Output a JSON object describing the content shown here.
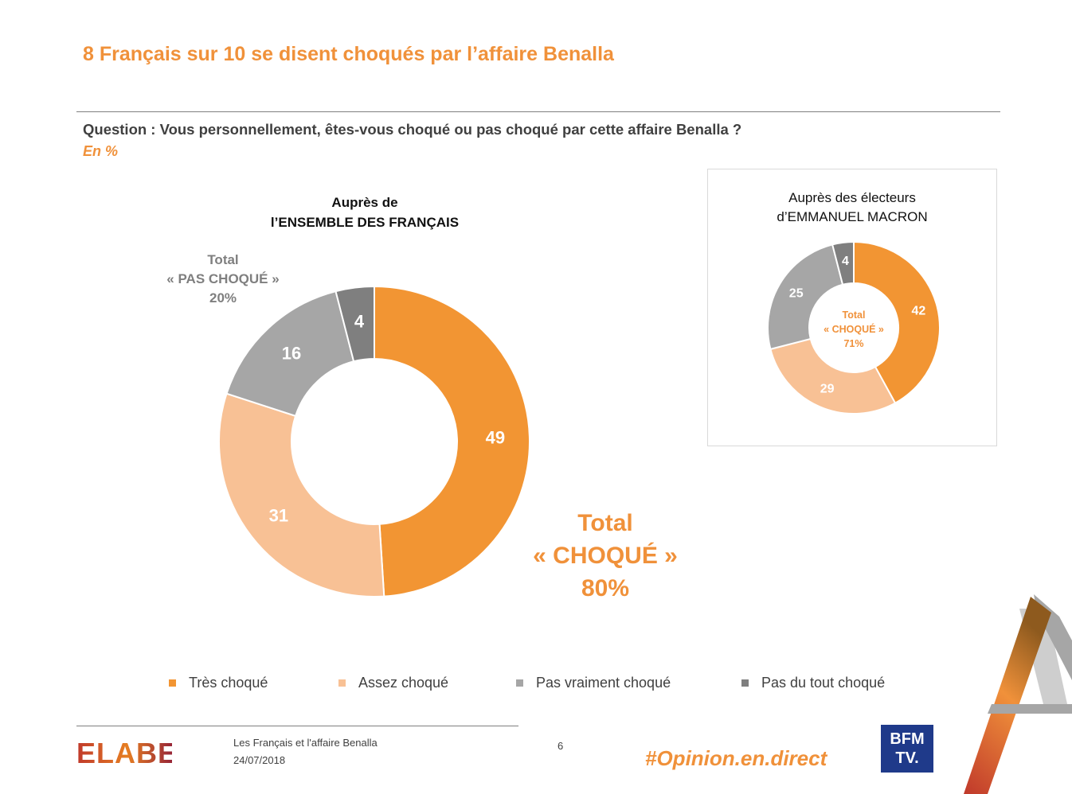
{
  "title": "8 Français sur 10 se disent choqués par l’affaire Benalla",
  "question": "Question : Vous personnellement, êtes-vous choqué ou pas choqué par cette affaire Benalla ?",
  "unit": "En %",
  "colors": {
    "accent": "#F0913A",
    "tres": "#F29533",
    "assez": "#F8C195",
    "pas_vraiment": "#A6A6A6",
    "pas_du_tout": "#7F7F7F"
  },
  "chart_data": [
    {
      "type": "pie",
      "title_line1": "Auprès de",
      "title_line2": "l’ENSEMBLE DES FRANÇAIS",
      "categories": [
        "Très choqué",
        "Assez choqué",
        "Pas vraiment choqué",
        "Pas du tout choqué"
      ],
      "values": [
        49,
        31,
        16,
        4
      ],
      "value_labels": [
        "49",
        "31",
        "16",
        "4"
      ],
      "annotation_pas_choque": {
        "line1": "Total",
        "line2": "« PAS CHOQUÉ »",
        "line3": "20%"
      },
      "annotation_choque": {
        "line1": "Total",
        "line2": "« CHOQUÉ »",
        "line3": "80%"
      }
    },
    {
      "type": "pie",
      "title_line1": "Auprès des électeurs",
      "title_line2": "d’EMMANUEL MACRON",
      "categories": [
        "Très choqué",
        "Assez choqué",
        "Pas vraiment choqué",
        "Pas du tout choqué"
      ],
      "values": [
        42,
        29,
        25,
        4
      ],
      "value_labels": [
        "42",
        "29",
        "25",
        "4"
      ],
      "center_label": {
        "line1": "Total",
        "line2": "« CHOQUÉ »",
        "line3": "71%"
      }
    }
  ],
  "legend": [
    "Très choqué",
    "Assez choqué",
    "Pas vraiment choqué",
    "Pas du tout choqué"
  ],
  "footer": {
    "logo": "ELABE",
    "doc_title": "Les Français et l'affaire Benalla",
    "date": "24/07/2018",
    "page": "6",
    "hashtag": "#Opinion.en.direct",
    "bfm_line1": "BFM",
    "bfm_line2": "TV."
  }
}
